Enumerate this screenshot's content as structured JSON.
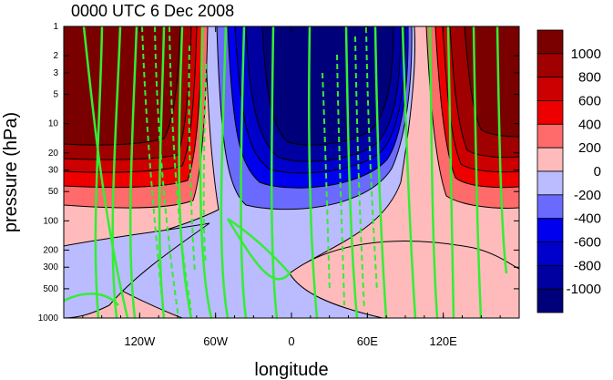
{
  "chart_data": {
    "type": "contour",
    "title": "0000 UTC 6 Dec 2008",
    "xlabel": "longitude",
    "ylabel": "pressure (hPa)",
    "x_ticks": [
      "120W",
      "60W",
      "0",
      "60E",
      "120E"
    ],
    "x_tick_values": [
      -120,
      -60,
      0,
      60,
      120
    ],
    "xlim": [
      -180,
      180
    ],
    "y_ticks": [
      "1",
      "2",
      "3",
      "5",
      "10",
      "20",
      "30",
      "50",
      "100",
      "200",
      "300",
      "500",
      "1000"
    ],
    "y_tick_values": [
      1,
      2,
      3,
      5,
      10,
      20,
      30,
      50,
      100,
      200,
      300,
      500,
      1000
    ],
    "ylim": [
      1000,
      1
    ],
    "y_scale": "log",
    "colorbar": {
      "labels": [
        "1000",
        "800",
        "600",
        "400",
        "200",
        "0",
        "-200",
        "-400",
        "-600",
        "-800",
        "-1000"
      ],
      "colors": [
        "#7a0000",
        "#a00000",
        "#cc0000",
        "#ee0000",
        "#ff6a6a",
        "#ffbbbb",
        "#bbbbff",
        "#6a6aff",
        "#0000ee",
        "#0000cc",
        "#0000a0",
        "#00007a"
      ]
    },
    "line_contours": {
      "color": "#33ee33",
      "positive": "solid",
      "negative": "dashed"
    }
  }
}
